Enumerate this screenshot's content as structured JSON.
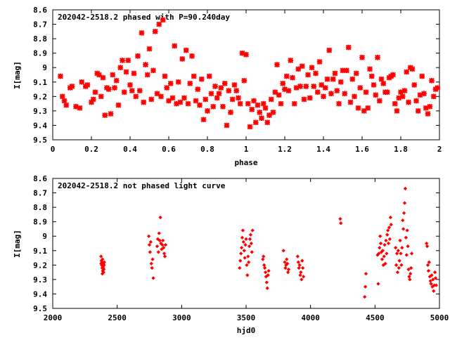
{
  "chart_data": [
    {
      "type": "scatter",
      "title": "202042-2518.2 phased with P=90.240day",
      "xlabel": "phase",
      "ylabel": "I[mag]",
      "xlim": [
        0,
        2
      ],
      "ylim": [
        9.5,
        8.6
      ],
      "y_inverted": true,
      "x_ticks": [
        "0",
        "0.2",
        "0.4",
        "0.6",
        "0.8",
        "1",
        "1.2",
        "1.4",
        "1.6",
        "1.8",
        "2"
      ],
      "y_ticks": [
        "8.6",
        "8.7",
        "8.8",
        "8.9",
        "9",
        "9.1",
        "9.2",
        "9.3",
        "9.4",
        "9.5"
      ],
      "marker": "star",
      "color": "#ff0000",
      "points": [
        [
          0.04,
          9.06
        ],
        [
          0.05,
          9.2
        ],
        [
          0.06,
          9.23
        ],
        [
          0.07,
          9.26
        ],
        [
          0.09,
          9.14
        ],
        [
          0.1,
          9.13
        ],
        [
          0.12,
          9.27
        ],
        [
          0.14,
          9.28
        ],
        [
          0.15,
          9.1
        ],
        [
          0.17,
          9.13
        ],
        [
          0.18,
          9.12
        ],
        [
          0.2,
          9.24
        ],
        [
          0.21,
          9.22
        ],
        [
          0.22,
          9.17
        ],
        [
          0.23,
          9.04
        ],
        [
          0.24,
          9.05
        ],
        [
          0.25,
          9.2
        ],
        [
          0.26,
          9.07
        ],
        [
          0.27,
          9.33
        ],
        [
          0.28,
          9.14
        ],
        [
          0.29,
          9.15
        ],
        [
          0.3,
          9.32
        ],
        [
          0.31,
          9.05
        ],
        [
          0.32,
          9.14
        ],
        [
          0.33,
          9.09
        ],
        [
          0.34,
          9.26
        ],
        [
          0.35,
          9.0
        ],
        [
          0.36,
          8.95
        ],
        [
          0.37,
          9.17
        ],
        [
          0.38,
          9.03
        ],
        [
          0.39,
          8.95
        ],
        [
          0.4,
          9.12
        ],
        [
          0.41,
          9.16
        ],
        [
          0.42,
          9.04
        ],
        [
          0.43,
          9.2
        ],
        [
          0.44,
          8.92
        ],
        [
          0.45,
          9.16
        ],
        [
          0.46,
          8.76
        ],
        [
          0.47,
          9.24
        ],
        [
          0.48,
          8.98
        ],
        [
          0.49,
          9.05
        ],
        [
          0.5,
          8.87
        ],
        [
          0.51,
          9.22
        ],
        [
          0.52,
          9.02
        ],
        [
          0.53,
          8.75
        ],
        [
          0.54,
          9.18
        ],
        [
          0.55,
          8.7
        ],
        [
          0.56,
          9.2
        ],
        [
          0.57,
          8.67
        ],
        [
          0.58,
          9.06
        ],
        [
          0.59,
          9.14
        ],
        [
          0.6,
          9.23
        ],
        [
          0.61,
          9.11
        ],
        [
          0.62,
          9.21
        ],
        [
          0.63,
          8.85
        ],
        [
          0.64,
          9.25
        ],
        [
          0.65,
          9.1
        ],
        [
          0.66,
          9.24
        ],
        [
          0.67,
          8.94
        ],
        [
          0.68,
          9.21
        ],
        [
          0.69,
          8.88
        ],
        [
          0.7,
          9.25
        ],
        [
          0.71,
          9.11
        ],
        [
          0.72,
          8.92
        ],
        [
          0.73,
          9.06
        ],
        [
          0.74,
          9.23
        ],
        [
          0.75,
          9.15
        ],
        [
          0.76,
          9.26
        ],
        [
          0.77,
          9.08
        ],
        [
          0.78,
          9.36
        ],
        [
          0.79,
          9.22
        ],
        [
          0.8,
          9.3
        ],
        [
          0.81,
          9.06
        ],
        [
          0.82,
          9.18
        ],
        [
          0.83,
          9.27
        ],
        [
          0.84,
          9.13
        ],
        [
          0.85,
          9.21
        ],
        [
          0.86,
          9.18
        ],
        [
          0.87,
          9.14
        ],
        [
          0.88,
          9.27
        ],
        [
          0.89,
          9.11
        ],
        [
          0.9,
          9.4
        ],
        [
          0.91,
          9.16
        ],
        [
          0.92,
          9.31
        ],
        [
          0.93,
          9.22
        ],
        [
          0.94,
          9.12
        ],
        [
          0.95,
          9.16
        ],
        [
          0.96,
          9.21
        ],
        [
          0.97,
          9.25
        ],
        [
          0.98,
          8.9
        ],
        [
          0.99,
          9.09
        ],
        [
          1.0,
          8.91
        ],
        [
          1.01,
          9.25
        ],
        [
          1.02,
          9.41
        ],
        [
          1.03,
          9.29
        ],
        [
          1.04,
          9.23
        ],
        [
          1.05,
          9.38
        ],
        [
          1.06,
          9.26
        ],
        [
          1.07,
          9.31
        ],
        [
          1.08,
          9.35
        ],
        [
          1.09,
          9.25
        ],
        [
          1.1,
          9.28
        ],
        [
          1.11,
          9.38
        ],
        [
          1.12,
          9.33
        ],
        [
          1.13,
          9.22
        ],
        [
          1.14,
          9.31
        ],
        [
          1.15,
          9.17
        ],
        [
          1.16,
          8.98
        ],
        [
          1.17,
          9.19
        ],
        [
          1.18,
          9.25
        ],
        [
          1.19,
          9.11
        ],
        [
          1.2,
          9.15
        ],
        [
          1.21,
          9.06
        ],
        [
          1.22,
          9.16
        ],
        [
          1.23,
          8.95
        ],
        [
          1.24,
          9.07
        ],
        [
          1.25,
          9.25
        ],
        [
          1.26,
          9.14
        ],
        [
          1.27,
          9.01
        ],
        [
          1.28,
          9.13
        ],
        [
          1.29,
          8.99
        ],
        [
          1.3,
          9.22
        ],
        [
          1.31,
          9.13
        ],
        [
          1.32,
          9.05
        ],
        [
          1.33,
          9.21
        ],
        [
          1.34,
          9.0
        ],
        [
          1.35,
          9.13
        ],
        [
          1.36,
          9.04
        ],
        [
          1.37,
          9.17
        ],
        [
          1.38,
          8.96
        ],
        [
          1.39,
          9.12
        ],
        [
          1.4,
          9.2
        ],
        [
          1.41,
          9.14
        ],
        [
          1.42,
          9.08
        ],
        [
          1.43,
          8.88
        ],
        [
          1.44,
          9.18
        ],
        [
          1.45,
          9.08
        ],
        [
          1.46,
          9.04
        ],
        [
          1.47,
          9.16
        ],
        [
          1.48,
          9.25
        ],
        [
          1.49,
          9.1
        ],
        [
          1.5,
          9.02
        ],
        [
          1.51,
          9.18
        ],
        [
          1.52,
          9.02
        ],
        [
          1.53,
          8.86
        ],
        [
          1.54,
          9.24
        ],
        [
          1.55,
          9.08
        ],
        [
          1.56,
          9.2
        ],
        [
          1.57,
          9.04
        ],
        [
          1.58,
          9.28
        ],
        [
          1.59,
          9.14
        ],
        [
          1.6,
          8.93
        ],
        [
          1.61,
          9.3
        ],
        [
          1.62,
          9.17
        ],
        [
          1.63,
          9.28
        ],
        [
          1.64,
          9.01
        ],
        [
          1.65,
          9.06
        ],
        [
          1.66,
          9.12
        ],
        [
          1.67,
          9.19
        ],
        [
          1.68,
          8.93
        ],
        [
          1.69,
          9.23
        ],
        [
          1.7,
          9.08
        ],
        [
          1.71,
          9.11
        ],
        [
          1.72,
          9.17
        ],
        [
          1.73,
          9.17
        ],
        [
          1.74,
          9.07
        ],
        [
          1.75,
          9.06
        ],
        [
          1.76,
          9.05
        ],
        [
          1.77,
          9.25
        ],
        [
          1.78,
          9.3
        ],
        [
          1.79,
          9.21
        ],
        [
          1.8,
          9.17
        ],
        [
          1.81,
          9.2
        ],
        [
          1.82,
          9.16
        ],
        [
          1.83,
          9.03
        ],
        [
          1.84,
          9.24
        ],
        [
          1.85,
          9.0
        ],
        [
          1.86,
          9.01
        ],
        [
          1.87,
          9.12
        ],
        [
          1.88,
          9.23
        ],
        [
          1.89,
          9.3
        ],
        [
          1.9,
          9.19
        ],
        [
          1.91,
          9.06
        ],
        [
          1.92,
          9.18
        ],
        [
          1.93,
          9.28
        ],
        [
          1.94,
          9.32
        ],
        [
          1.95,
          9.27
        ],
        [
          1.96,
          9.09
        ],
        [
          1.97,
          9.2
        ],
        [
          1.98,
          9.15
        ],
        [
          1.99,
          9.14
        ]
      ]
    },
    {
      "type": "scatter",
      "title": "202042-2518.2 not phased light curve",
      "xlabel": "hjd0",
      "ylabel": "I[mag]",
      "xlim": [
        2000,
        5000
      ],
      "ylim": [
        9.5,
        8.6
      ],
      "y_inverted": true,
      "x_ticks": [
        "2000",
        "2500",
        "3000",
        "3500",
        "4000",
        "4500",
        "5000"
      ],
      "y_ticks": [
        "8.6",
        "8.7",
        "8.8",
        "8.9",
        "9",
        "9.1",
        "9.2",
        "9.3",
        "9.4",
        "9.5"
      ],
      "marker": "diamond",
      "color": "#ff0000",
      "points": [
        [
          2375,
          9.14
        ],
        [
          2378,
          9.17
        ],
        [
          2380,
          9.2
        ],
        [
          2382,
          9.18
        ],
        [
          2384,
          9.22
        ],
        [
          2386,
          9.16
        ],
        [
          2388,
          9.24
        ],
        [
          2390,
          9.21
        ],
        [
          2392,
          9.19
        ],
        [
          2394,
          9.25
        ],
        [
          2396,
          9.23
        ],
        [
          2398,
          9.2
        ],
        [
          2400,
          9.18
        ],
        [
          2385,
          9.26
        ],
        [
          2391,
          9.22
        ],
        [
          2376,
          9.19
        ],
        [
          2745,
          9.0
        ],
        [
          2750,
          9.06
        ],
        [
          2755,
          9.11
        ],
        [
          2760,
          9.04
        ],
        [
          2765,
          9.19
        ],
        [
          2770,
          9.22
        ],
        [
          2775,
          9.16
        ],
        [
          2780,
          9.29
        ],
        [
          2810,
          9.07
        ],
        [
          2815,
          9.02
        ],
        [
          2820,
          9.11
        ],
        [
          2825,
          8.98
        ],
        [
          2830,
          9.03
        ],
        [
          2835,
          8.87
        ],
        [
          2840,
          9.05
        ],
        [
          2845,
          9.09
        ],
        [
          2850,
          9.06
        ],
        [
          2855,
          9.03
        ],
        [
          2860,
          9.08
        ],
        [
          2865,
          9.12
        ],
        [
          2870,
          9.14
        ],
        [
          2875,
          9.06
        ],
        [
          3450,
          9.22
        ],
        [
          3455,
          9.17
        ],
        [
          3460,
          9.12
        ],
        [
          3465,
          9.08
        ],
        [
          3470,
          9.01
        ],
        [
          3475,
          8.96
        ],
        [
          3480,
          9.04
        ],
        [
          3485,
          9.1
        ],
        [
          3490,
          9.15
        ],
        [
          3495,
          9.06
        ],
        [
          3500,
          9.02
        ],
        [
          3505,
          9.2
        ],
        [
          3510,
          9.27
        ],
        [
          3515,
          9.14
        ],
        [
          3520,
          9.18
        ],
        [
          3525,
          9.07
        ],
        [
          3530,
          9.02
        ],
        [
          3535,
          8.99
        ],
        [
          3540,
          9.05
        ],
        [
          3545,
          9.11
        ],
        [
          3550,
          8.96
        ],
        [
          3630,
          9.16
        ],
        [
          3635,
          9.14
        ],
        [
          3640,
          9.2
        ],
        [
          3645,
          9.22
        ],
        [
          3650,
          9.25
        ],
        [
          3655,
          9.28
        ],
        [
          3660,
          9.32
        ],
        [
          3665,
          9.36
        ],
        [
          3670,
          9.27
        ],
        [
          3675,
          9.24
        ],
        [
          3790,
          9.1
        ],
        [
          3800,
          9.18
        ],
        [
          3805,
          9.22
        ],
        [
          3810,
          9.2
        ],
        [
          3815,
          9.16
        ],
        [
          3820,
          9.19
        ],
        [
          3825,
          9.25
        ],
        [
          3830,
          9.23
        ],
        [
          3900,
          9.14
        ],
        [
          3905,
          9.18
        ],
        [
          3910,
          9.22
        ],
        [
          3915,
          9.2
        ],
        [
          3920,
          9.27
        ],
        [
          3925,
          9.25
        ],
        [
          3930,
          9.3
        ],
        [
          3935,
          9.17
        ],
        [
          3940,
          9.22
        ],
        [
          3945,
          9.28
        ],
        [
          4230,
          8.88
        ],
        [
          4235,
          8.91
        ],
        [
          4420,
          9.42
        ],
        [
          4425,
          9.35
        ],
        [
          4430,
          9.26
        ],
        [
          4520,
          9.13
        ],
        [
          4525,
          9.33
        ],
        [
          4530,
          9.12
        ],
        [
          4535,
          9.08
        ],
        [
          4540,
          9.0
        ],
        [
          4545,
          9.05
        ],
        [
          4550,
          9.11
        ],
        [
          4555,
          9.16
        ],
        [
          4560,
          9.1
        ],
        [
          4565,
          9.2
        ],
        [
          4570,
          9.14
        ],
        [
          4575,
          9.06
        ],
        [
          4580,
          9.19
        ],
        [
          4585,
          9.03
        ],
        [
          4590,
          9.12
        ],
        [
          4595,
          8.99
        ],
        [
          4600,
          8.96
        ],
        [
          4605,
          9.05
        ],
        [
          4610,
          8.94
        ],
        [
          4615,
          9.02
        ],
        [
          4620,
          8.87
        ],
        [
          4625,
          8.92
        ],
        [
          4660,
          9.08
        ],
        [
          4665,
          9.2
        ],
        [
          4670,
          9.12
        ],
        [
          4675,
          9.25
        ],
        [
          4680,
          9.1
        ],
        [
          4685,
          9.22
        ],
        [
          4690,
          9.17
        ],
        [
          4695,
          9.03
        ],
        [
          4700,
          9.12
        ],
        [
          4705,
          9.2
        ],
        [
          4710,
          9.08
        ],
        [
          4715,
          8.89
        ],
        [
          4720,
          8.95
        ],
        [
          4725,
          8.84
        ],
        [
          4730,
          8.77
        ],
        [
          4735,
          8.67
        ],
        [
          4740,
          9.01
        ],
        [
          4745,
          9.13
        ],
        [
          4750,
          8.96
        ],
        [
          4755,
          9.07
        ],
        [
          4760,
          9.23
        ],
        [
          4765,
          9.28
        ],
        [
          4770,
          9.3
        ],
        [
          4775,
          9.26
        ],
        [
          4780,
          9.22
        ],
        [
          4785,
          9.12
        ],
        [
          4900,
          9.05
        ],
        [
          4905,
          9.07
        ],
        [
          4910,
          9.2
        ],
        [
          4915,
          9.24
        ],
        [
          4920,
          9.18
        ],
        [
          4925,
          9.28
        ],
        [
          4930,
          9.31
        ],
        [
          4935,
          9.33
        ],
        [
          4940,
          9.27
        ],
        [
          4945,
          9.35
        ],
        [
          4950,
          9.3
        ],
        [
          4955,
          9.38
        ],
        [
          4960,
          9.34
        ],
        [
          4965,
          9.25
        ],
        [
          4970,
          9.29
        ],
        [
          4975,
          9.34
        ]
      ]
    }
  ]
}
